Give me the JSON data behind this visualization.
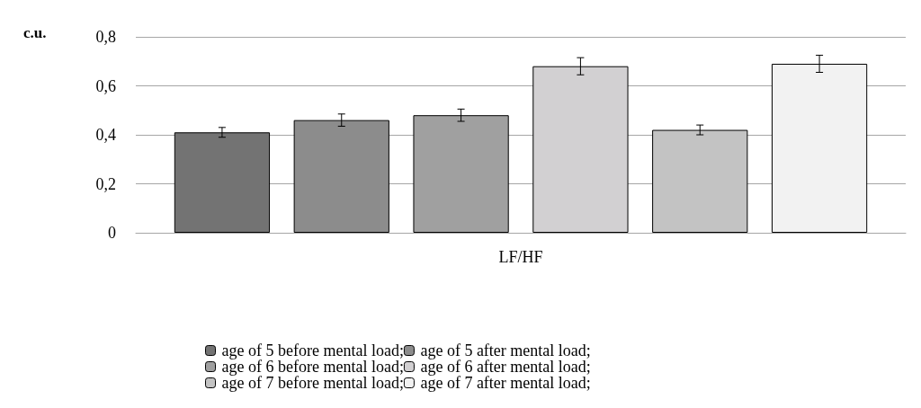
{
  "chart_data": {
    "type": "bar",
    "ylabel": "c.u.",
    "categories": [
      "LF/HF"
    ],
    "series": [
      {
        "name": "age of 5 before mental load;",
        "color": "#737373",
        "values": [
          0.41
        ],
        "errors": [
          0.02
        ]
      },
      {
        "name": "age of 5 after mental load;",
        "color": "#8c8c8c",
        "values": [
          0.46
        ],
        "errors": [
          0.025
        ]
      },
      {
        "name": "age of 6 before mental load;",
        "color": "#a0a0a0",
        "values": [
          0.48
        ],
        "errors": [
          0.025
        ]
      },
      {
        "name": "age of 6 after mental load;",
        "color": "#d2d0d2",
        "values": [
          0.68
        ],
        "errors": [
          0.035
        ]
      },
      {
        "name": "age of 7 before mental load;",
        "color": "#c3c3c3",
        "values": [
          0.42
        ],
        "errors": [
          0.02
        ]
      },
      {
        "name": "age of 7 after mental load;",
        "color": "#f2f2f2",
        "values": [
          0.69
        ],
        "errors": [
          0.035
        ]
      }
    ],
    "ylim": [
      0,
      0.8
    ],
    "yticks": [
      {
        "value": 0,
        "label": "0"
      },
      {
        "value": 0.2,
        "label": "0,2"
      },
      {
        "value": 0.4,
        "label": "0,4"
      },
      {
        "value": 0.6,
        "label": "0,6"
      },
      {
        "value": 0.8,
        "label": "0,8"
      }
    ],
    "grid": "y",
    "legend": "bottom"
  }
}
